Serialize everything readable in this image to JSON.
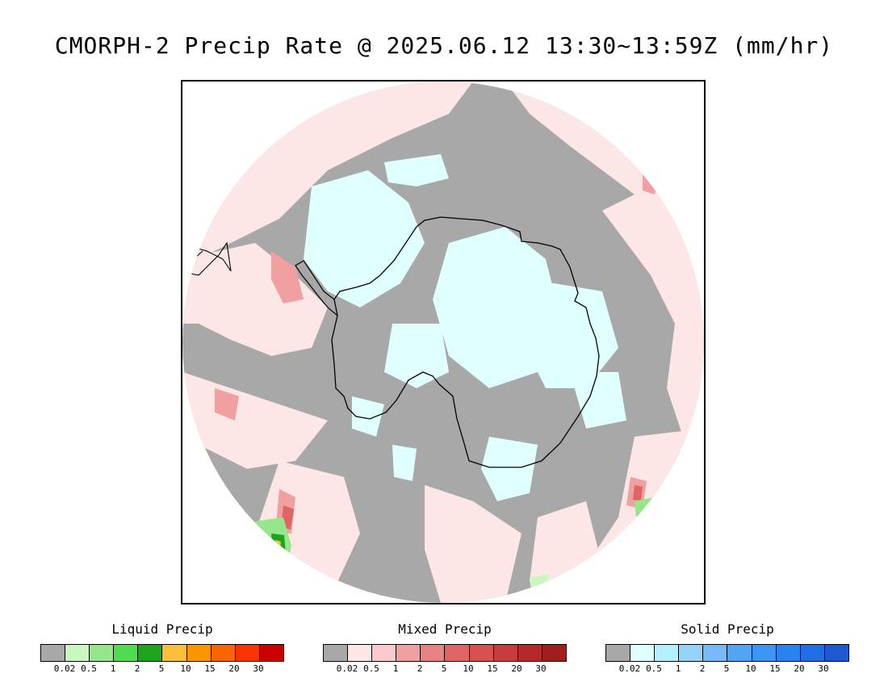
{
  "title": "CMORPH-2 Precip Rate @ 2025.06.12 13:30~13:59Z (mm/hr)",
  "colors": {
    "no_precip": "#a8a8a8",
    "frame": "#000000"
  },
  "legends": [
    {
      "title": "Liquid Precip",
      "colors": [
        "#a8a8a8",
        "#c8f8c0",
        "#96e68c",
        "#50de50",
        "#1ea51e",
        "#fac03c",
        "#fa9600",
        "#fa6400",
        "#fa3200",
        "#c80000"
      ],
      "ticks": [
        "0.02",
        "0.5",
        "1",
        "2",
        "5",
        "10",
        "15",
        "20",
        "30"
      ]
    },
    {
      "title": "Mixed Precip",
      "colors": [
        "#a8a8a8",
        "#fde6e6",
        "#fccaca",
        "#f0a0a0",
        "#e88282",
        "#e06464",
        "#d85050",
        "#c83c3c",
        "#b42828",
        "#a01e1e"
      ],
      "ticks": [
        "0.02",
        "0.5",
        "1",
        "2",
        "5",
        "10",
        "15",
        "20",
        "30"
      ]
    },
    {
      "title": "Solid Precip",
      "colors": [
        "#a8a8a8",
        "#e0ffff",
        "#b4f0ff",
        "#96d2fa",
        "#78b9fa",
        "#50a5f5",
        "#3c96f5",
        "#2882f0",
        "#1e6ee6",
        "#1e5ad2"
      ],
      "ticks": [
        "0.02",
        "0.5",
        "1",
        "2",
        "5",
        "10",
        "15",
        "20",
        "30"
      ]
    }
  ]
}
